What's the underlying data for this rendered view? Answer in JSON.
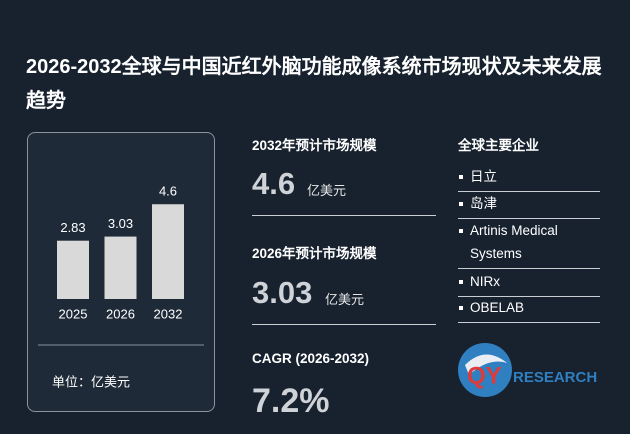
{
  "title": "2026-2032全球与中国近红外脑功能成像系统市场现状及未来发展趋势",
  "chart_data": {
    "type": "bar",
    "categories": [
      "2025",
      "2026",
      "2032"
    ],
    "values": [
      2.83,
      3.03,
      4.6
    ],
    "color": "#d9d9d9",
    "unit_label": "单位：亿美元"
  },
  "stats": [
    {
      "label": "2032年预计市场规模",
      "value": "4.6",
      "unit": "亿美元"
    },
    {
      "label": "2026年预计市场规模",
      "value": "3.03",
      "unit": "亿美元"
    },
    {
      "label": "CAGR (2026-2032)",
      "value": "7.2%"
    }
  ],
  "companies": {
    "title": "全球主要企业",
    "items": [
      "日立",
      "岛津",
      "Artinis Medical Systems",
      "NIRx",
      "OBELAB"
    ]
  },
  "logo": {
    "qy": "QY",
    "research": "RESEARCH"
  }
}
